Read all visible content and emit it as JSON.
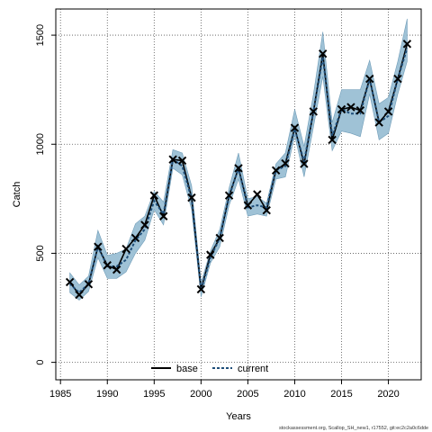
{
  "chart_data": {
    "type": "line",
    "title": "",
    "xlabel": "Years",
    "ylabel": "Catch",
    "xlim": [
      1984.5,
      2023.5
    ],
    "ylim": [
      -80,
      1620
    ],
    "x_ticks": [
      1985,
      1990,
      1995,
      2000,
      2005,
      2010,
      2015,
      2020
    ],
    "y_ticks": [
      0,
      500,
      1000,
      1500
    ],
    "grid": true,
    "legend_position": "bottom-center",
    "years": [
      1986,
      1987,
      1988,
      1989,
      1990,
      1991,
      1992,
      1993,
      1994,
      1995,
      1996,
      1997,
      1998,
      1999,
      2000,
      2001,
      2002,
      2003,
      2004,
      2005,
      2006,
      2007,
      2008,
      2009,
      2010,
      2011,
      2012,
      2013,
      2014,
      2015,
      2016,
      2017,
      2018,
      2019,
      2020,
      2021,
      2022
    ],
    "observed": [
      368,
      310,
      358,
      530,
      445,
      425,
      520,
      570,
      630,
      765,
      670,
      930,
      925,
      755,
      335,
      493,
      570,
      765,
      890,
      720,
      770,
      697,
      880,
      912,
      1075,
      910,
      1150,
      1415,
      1020,
      1160,
      1170,
      1155,
      1300,
      1100,
      1150,
      1300,
      1460
    ],
    "series": [
      {
        "name": "base",
        "color": "#000000",
        "values": [
          368,
          310,
          358,
          530,
          445,
          425,
          520,
          570,
          630,
          765,
          670,
          930,
          925,
          755,
          335,
          493,
          570,
          765,
          890,
          720,
          770,
          697,
          880,
          912,
          1075,
          910,
          1150,
          1415,
          1020,
          1160,
          1170,
          1155,
          1300,
          1100,
          1150,
          1300,
          1460
        ]
      },
      {
        "name": "current",
        "color": "#1f4e79",
        "values": [
          360,
          320,
          360,
          530,
          440,
          440,
          470,
          560,
          610,
          740,
          680,
          930,
          900,
          750,
          330,
          480,
          570,
          760,
          890,
          710,
          720,
          710,
          880,
          900,
          1070,
          920,
          1150,
          1400,
          1040,
          1160,
          1140,
          1140,
          1300,
          1100,
          1130,
          1300,
          1440
        ],
        "lower": [
          320,
          285,
          325,
          480,
          385,
          385,
          415,
          500,
          560,
          700,
          630,
          890,
          860,
          700,
          300,
          455,
          530,
          720,
          840,
          670,
          680,
          670,
          840,
          850,
          1040,
          850,
          1080,
          1310,
          970,
          1060,
          1050,
          1035,
          1230,
          1020,
          1050,
          1230,
          1380
        ],
        "upper": [
          410,
          355,
          395,
          605,
          490,
          500,
          520,
          635,
          670,
          785,
          735,
          975,
          960,
          810,
          365,
          510,
          610,
          800,
          960,
          750,
          760,
          730,
          910,
          960,
          1160,
          990,
          1230,
          1515,
          1100,
          1250,
          1250,
          1250,
          1385,
          1185,
          1215,
          1380,
          1575
        ]
      }
    ],
    "band_color": "#9fc2d6"
  },
  "footer": "stockassessment.org, Scallop_SH_new1, r17552, git:ec2c2a0c6dde"
}
